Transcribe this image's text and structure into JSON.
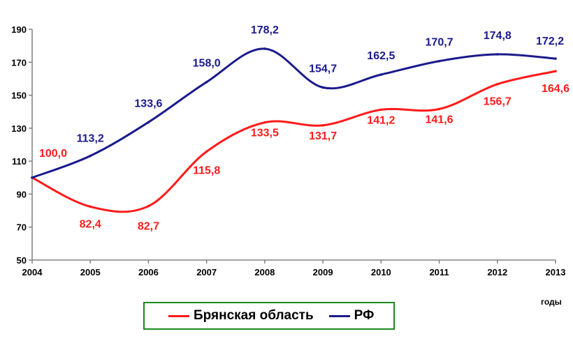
{
  "chart_data": {
    "type": "line",
    "title": "",
    "xlabel": "годы",
    "ylabel": "",
    "x": [
      "2004",
      "2005",
      "2006",
      "2007",
      "2008",
      "2009",
      "2010",
      "2011",
      "2012",
      "2013"
    ],
    "ylim": [
      50,
      190
    ],
    "yticks": [
      "50",
      "70",
      "90",
      "110",
      "130",
      "150",
      "170",
      "190"
    ],
    "ytick_values": [
      50,
      70,
      90,
      110,
      130,
      150,
      170,
      190
    ],
    "grid": false,
    "legend": "bottom",
    "series": [
      {
        "name": "Брянская область",
        "color": "#ff1a1a",
        "values": [
          100.0,
          82.4,
          82.7,
          115.8,
          133.5,
          131.7,
          141.2,
          141.6,
          156.7,
          164.6
        ],
        "labels": [
          "100,0",
          "82,4",
          "82,7",
          "115,8",
          "133,5",
          "131,7",
          "141,2",
          "141,6",
          "156,7",
          "164,6"
        ]
      },
      {
        "name": "РФ",
        "color": "#1a1a8c",
        "values": [
          100.0,
          113.2,
          133.6,
          158.0,
          178.2,
          154.7,
          162.5,
          170.7,
          174.8,
          172.2
        ],
        "labels": [
          "",
          "113,2",
          "133,6",
          "158,0",
          "178,2",
          "154,7",
          "162,5",
          "170,7",
          "174,8",
          "172,2"
        ]
      }
    ]
  }
}
